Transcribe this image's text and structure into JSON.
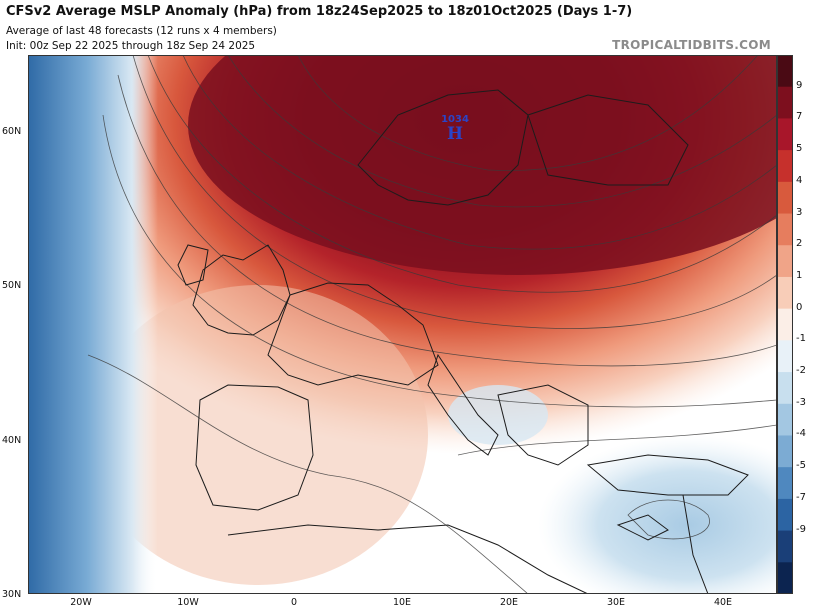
{
  "header": {
    "title": "CFSv2 Average MSLP Anomaly (hPa) from 18z24Sep2025 to 18z01Oct2025 (Days 1-7)",
    "subtitle1": "Average of last 48 forecasts (12 runs x 4 members)",
    "subtitle2": "Init: 00z Sep 22 2025 through 18z Sep 24 2025",
    "brand": "TROPICALTIDBITS.COM"
  },
  "map": {
    "lat_labels": [
      "60N",
      "50N",
      "40N",
      "30N"
    ],
    "lon_labels": [
      "20W",
      "10W",
      "0",
      "10E",
      "20E",
      "30E",
      "40E"
    ],
    "high_marker": {
      "symbol": "H",
      "value": "1034"
    }
  },
  "colorbar": {
    "labels": [
      "9",
      "7",
      "5",
      "4",
      "3",
      "2",
      "1",
      "0",
      "-1",
      "-2",
      "-3",
      "-4",
      "-5",
      "-7",
      "-9"
    ],
    "colors": [
      "#4a0a14",
      "#7d0f1e",
      "#a8162a",
      "#c6302c",
      "#d85a3d",
      "#e67d5e",
      "#f0a488",
      "#f8cdb8",
      "#fbeee7",
      "#e8f1f8",
      "#c8dfee",
      "#a3c7e2",
      "#7cabd3",
      "#4f88bf",
      "#2c64a3",
      "#1a3f78",
      "#0c2450"
    ]
  },
  "colors": {
    "anomaly_positive_strong": "#7d0f1e",
    "anomaly_negative_strong": "#2c64a3",
    "high_marker": "#2a44c8"
  }
}
